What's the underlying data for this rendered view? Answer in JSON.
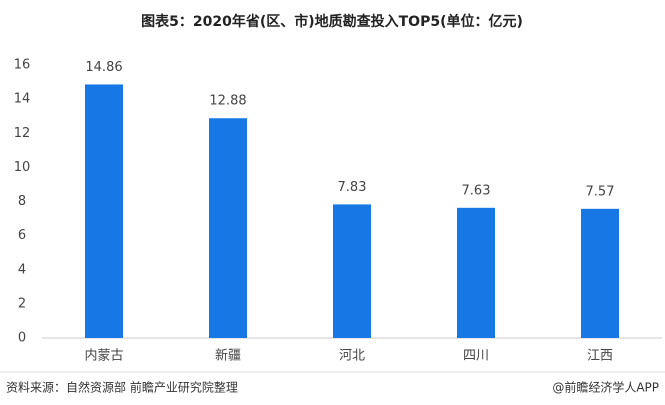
{
  "chart_data": {
    "type": "bar",
    "title": "图表5：2020年省(区、市)地质勘查投入TOP5(单位：亿元)",
    "categories": [
      "内蒙古",
      "新疆",
      "河北",
      "四川",
      "江西"
    ],
    "values": [
      14.86,
      12.88,
      7.83,
      7.63,
      7.57
    ],
    "color": "#1677e5",
    "ylim": [
      0,
      16
    ],
    "yticks": [
      0,
      2,
      4,
      6,
      8,
      10,
      12,
      14,
      16
    ],
    "grid": false,
    "source": "资料来源：自然资源部 前瞻产业研究院整理",
    "credit": "@前瞻经济学人APP"
  }
}
